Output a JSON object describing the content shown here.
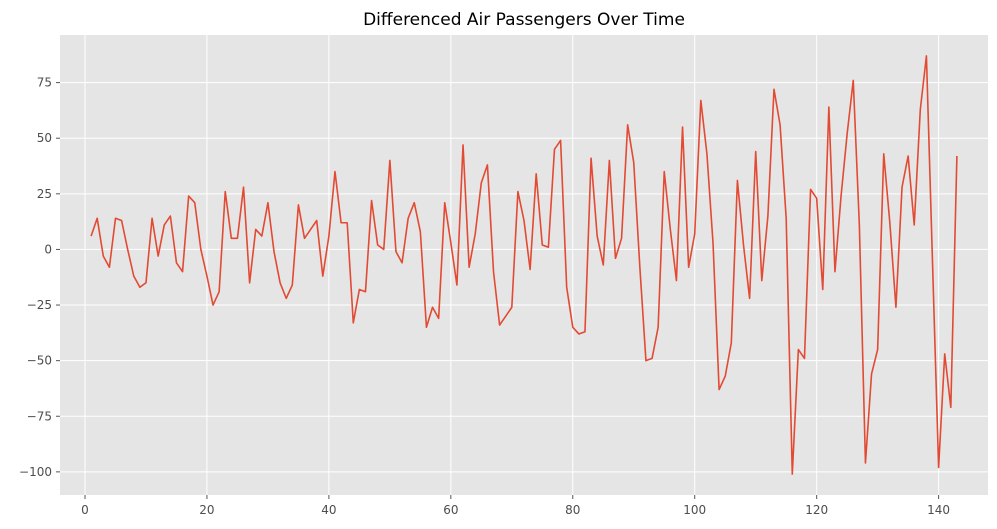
{
  "chart_data": {
    "type": "line",
    "title": "Differenced Air Passengers Over Time",
    "xlabel": "",
    "ylabel": "",
    "xlim": [
      -4.1,
      148.1
    ],
    "ylim": [
      -110.4,
      96.4
    ],
    "xticks": [
      0,
      20,
      40,
      60,
      80,
      100,
      120,
      140
    ],
    "yticks": [
      -100,
      -75,
      -50,
      -25,
      0,
      25,
      50,
      75
    ],
    "grid": true,
    "style": "ggplot",
    "colors": {
      "line": "#E24A33",
      "plot_background": "#E5E5E5",
      "grid": "#FFFFFF",
      "figure_background": "#FFFFFF"
    },
    "series": [
      {
        "x": [
          1,
          2,
          3,
          4,
          5,
          6,
          7,
          8,
          9,
          10,
          11,
          12,
          13,
          14,
          15,
          16,
          17,
          18,
          19,
          20,
          21,
          22,
          23,
          24,
          25,
          26,
          27,
          28,
          29,
          30,
          31,
          32,
          33,
          34,
          35,
          36,
          37,
          38,
          39,
          40,
          41,
          42,
          43,
          44,
          45,
          46,
          47,
          48,
          49,
          50,
          51,
          52,
          53,
          54,
          55,
          56,
          57,
          58,
          59,
          60,
          61,
          62,
          63,
          64,
          65,
          66,
          67,
          68,
          69,
          70,
          71,
          72,
          73,
          74,
          75,
          76,
          77,
          78,
          79,
          80,
          81,
          82,
          83,
          84,
          85,
          86,
          87,
          88,
          89,
          90,
          91,
          92,
          93,
          94,
          95,
          96,
          97,
          98,
          99,
          100,
          101,
          102,
          103,
          104,
          105,
          106,
          107,
          108,
          109,
          110,
          111,
          112,
          113,
          114,
          115,
          116,
          117,
          118,
          119,
          120,
          121,
          122,
          123,
          124,
          125,
          126,
          127,
          128,
          129,
          130,
          131,
          132,
          133,
          134,
          135,
          136,
          137,
          138,
          139,
          140,
          141,
          142,
          143
        ],
        "values": [
          6,
          14,
          -3,
          -8,
          14,
          13,
          0,
          -12,
          -17,
          -15,
          14,
          -3,
          11,
          15,
          -6,
          -10,
          24,
          21,
          0,
          -12,
          -25,
          -19,
          26,
          5,
          5,
          28,
          -15,
          9,
          6,
          21,
          -1,
          -15,
          -22,
          -16,
          20,
          5,
          9,
          13,
          -12,
          6,
          35,
          12,
          12,
          -33,
          -18,
          -19,
          22,
          2,
          0,
          40,
          -1,
          -6,
          14,
          21,
          8,
          -35,
          -26,
          -31,
          21,
          3,
          -16,
          47,
          -8,
          7,
          30,
          38,
          -10,
          -34,
          -30,
          -26,
          26,
          13,
          -9,
          34,
          2,
          1,
          45,
          49,
          -17,
          -35,
          -38,
          -37,
          41,
          6,
          -7,
          40,
          -4,
          5,
          56,
          39,
          -8,
          -50,
          -49,
          -35,
          35,
          9,
          -14,
          55,
          -8,
          7,
          67,
          43,
          3,
          -63,
          -57,
          -42,
          31,
          2,
          -22,
          44,
          -14,
          15,
          72,
          56,
          14,
          -101,
          -45,
          -49,
          27,
          23,
          -18,
          64,
          -10,
          24,
          52,
          76,
          11,
          -96,
          -56,
          -45,
          43,
          12,
          -26,
          28,
          42,
          11,
          63,
          87,
          -6,
          -98,
          -47,
          -71,
          42
        ]
      }
    ]
  }
}
